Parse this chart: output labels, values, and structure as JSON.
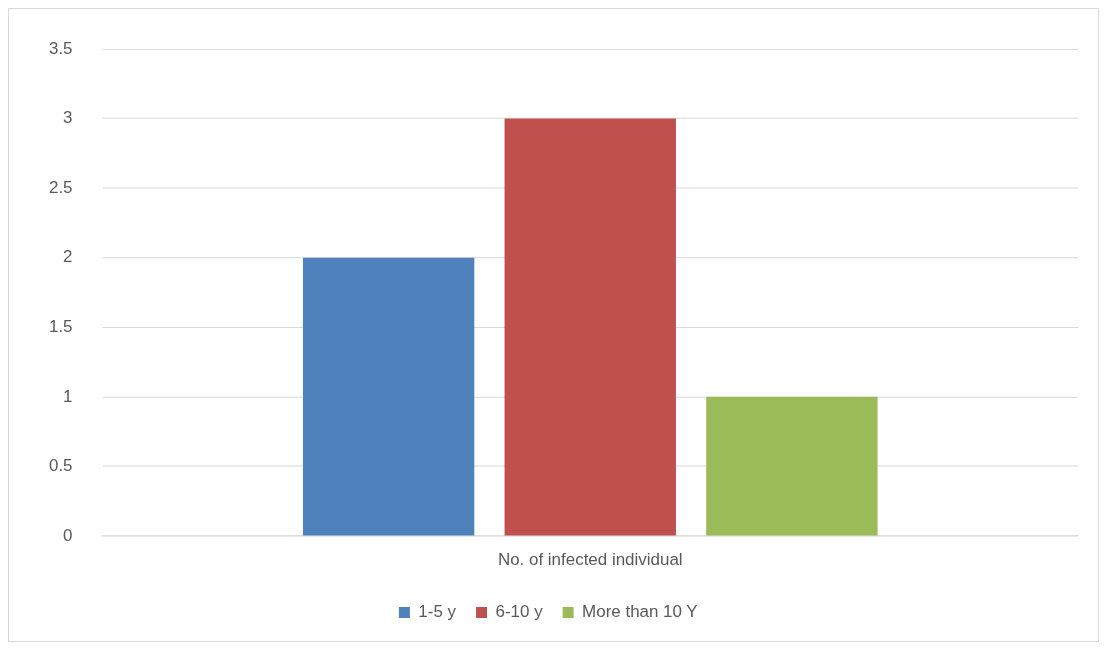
{
  "chart_data": {
    "type": "bar",
    "categories": [
      "No. of infected individual"
    ],
    "series": [
      {
        "name": "1-5 y",
        "color": "#4f81bd",
        "values": [
          2
        ]
      },
      {
        "name": "6-10 y",
        "color": "#c0504d",
        "values": [
          3
        ]
      },
      {
        "name": "More than 10 Y",
        "color": "#9bbb59",
        "values": [
          1
        ]
      }
    ],
    "ylim": [
      0,
      3.5
    ],
    "yticks": [
      0,
      0.5,
      1,
      1.5,
      2,
      2.5,
      3,
      3.5
    ],
    "grid": "y",
    "legend": "bottom"
  }
}
